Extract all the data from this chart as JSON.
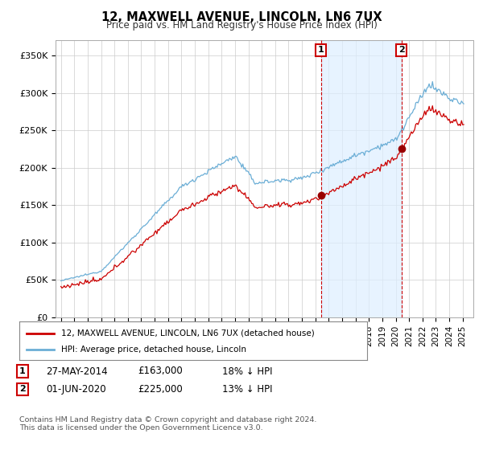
{
  "title": "12, MAXWELL AVENUE, LINCOLN, LN6 7UX",
  "subtitle": "Price paid vs. HM Land Registry's House Price Index (HPI)",
  "ylim": [
    0,
    370000
  ],
  "yticks": [
    0,
    50000,
    100000,
    150000,
    200000,
    250000,
    300000,
    350000
  ],
  "ytick_labels": [
    "£0",
    "£50K",
    "£100K",
    "£150K",
    "£200K",
    "£250K",
    "£300K",
    "£350K"
  ],
  "hpi_color": "#6baed6",
  "hpi_fill_color": "#ddeeff",
  "price_color": "#cc0000",
  "marker_color": "#990000",
  "vline_color": "#cc0000",
  "annotation_box_color": "#cc0000",
  "purchase1_date_num": 2014.41,
  "purchase1_price": 163000,
  "purchase1_label": "1",
  "purchase2_date_num": 2020.42,
  "purchase2_price": 225000,
  "purchase2_label": "2",
  "footer": "Contains HM Land Registry data © Crown copyright and database right 2024.\nThis data is licensed under the Open Government Licence v3.0.",
  "legend_line1": "12, MAXWELL AVENUE, LINCOLN, LN6 7UX (detached house)",
  "legend_line2": "HPI: Average price, detached house, Lincoln",
  "xtick_start": 1995,
  "xtick_end": 2026,
  "xlim_left": 1994.6,
  "xlim_right": 2025.8,
  "row1_date": "27-MAY-2014",
  "row1_price": "£163,000",
  "row1_info": "18% ↓ HPI",
  "row2_date": "01-JUN-2020",
  "row2_price": "£225,000",
  "row2_info": "13% ↓ HPI"
}
